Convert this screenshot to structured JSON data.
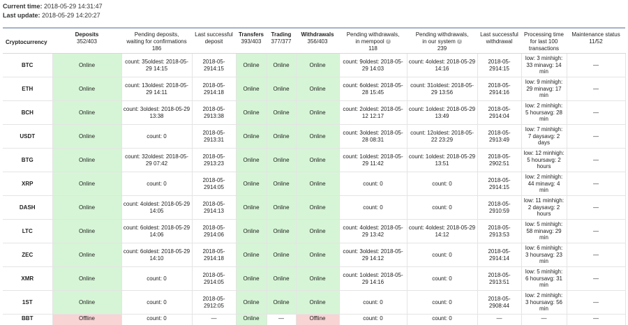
{
  "header": {
    "current_time_label": "Current time:",
    "current_time": "2018-05-29 14:31:47",
    "last_update_label": "Last update:",
    "last_update": "2018-05-29 14:20:27"
  },
  "columns": {
    "crypto": "Cryptocurrency",
    "deposits": "Deposits",
    "deposits_count": "352/403",
    "pending_dep_1": "Pending deposits,",
    "pending_dep_2": "waiting for confirmations",
    "pending_dep_count": "186",
    "last_dep_1": "Last successful",
    "last_dep_2": "deposit",
    "transfers": "Transfers",
    "transfers_count": "393/403",
    "trading": "Trading",
    "trading_count": "377/377",
    "withdrawals": "Withdrawals",
    "withdrawals_count": "356/403",
    "pw_mempool_1": "Pending withdrawals,",
    "pw_mempool_2": "in mempool",
    "pw_mempool_count": "118",
    "pw_system_1": "Pending withdrawals,",
    "pw_system_2": "in our system",
    "pw_system_count": "239",
    "last_wd_1": "Last successful",
    "last_wd_2": "withdrawal",
    "proc_1": "Processing time",
    "proc_2": "for last 100",
    "proc_3": "transactions",
    "maint_1": "Maintenance status",
    "maint_2": "11/52",
    "help_glyph": "?"
  },
  "colors": {
    "online": "#d6f5d6",
    "offline": "#f8d4d4",
    "header_rule": "#a5b2c8"
  },
  "rows": [
    {
      "name": "BTC",
      "deposits": "Online",
      "pd": [
        "count: 35",
        "oldest: 2018-05-29 14:15"
      ],
      "ld": [
        "2018-05-29",
        "14:15"
      ],
      "transfers": "Online",
      "trading": "Online",
      "withdrawals": "Online",
      "pm": [
        "count: 9",
        "oldest: 2018-05-29 14:03"
      ],
      "ps": [
        "count: 4",
        "oldest: 2018-05-29 14:16"
      ],
      "lw": [
        "2018-05-29",
        "14:15"
      ],
      "proc": [
        "low: 3 min",
        "high: 33 min",
        "avg: 14 min"
      ],
      "maint": "—"
    },
    {
      "name": "ETH",
      "deposits": "Online",
      "pd": [
        "count: 13",
        "oldest: 2018-05-29 14:11"
      ],
      "ld": [
        "2018-05-29",
        "14:18"
      ],
      "transfers": "Online",
      "trading": "Online",
      "withdrawals": "Online",
      "pm": [
        "count: 6",
        "oldest: 2018-05-28 15:45"
      ],
      "ps": [
        "count: 31",
        "oldest: 2018-05-29 13:56"
      ],
      "lw": [
        "2018-05-29",
        "14:16"
      ],
      "proc": [
        "low: 9 min",
        "high: 29 min",
        "avg: 17 min"
      ],
      "maint": "—"
    },
    {
      "name": "BCH",
      "deposits": "Online",
      "pd": [
        "count: 3",
        "oldest: 2018-05-29 13:38"
      ],
      "ld": [
        "2018-05-29",
        "13:38"
      ],
      "transfers": "Online",
      "trading": "Online",
      "withdrawals": "Online",
      "pm": [
        "count: 2",
        "oldest: 2018-05-12 12:17"
      ],
      "ps": [
        "count: 1",
        "oldest: 2018-05-29 13:49"
      ],
      "lw": [
        "2018-05-29",
        "14:04"
      ],
      "proc": [
        "low: 2 min",
        "high: 5 hours",
        "avg: 28 min"
      ],
      "maint": "—"
    },
    {
      "name": "USDT",
      "deposits": "Online",
      "pd": [
        "count: 0"
      ],
      "ld": [
        "2018-05-29",
        "13:31"
      ],
      "transfers": "Online",
      "trading": "Online",
      "withdrawals": "Online",
      "pm": [
        "count: 3",
        "oldest: 2018-05-28 08:31"
      ],
      "ps": [
        "count: 12",
        "oldest: 2018-05-22 23:29"
      ],
      "lw": [
        "2018-05-29",
        "13:49"
      ],
      "proc": [
        "low: 7 min",
        "high: 7 days",
        "avg: 2 days"
      ],
      "maint": "—"
    },
    {
      "name": "BTG",
      "deposits": "Online",
      "pd": [
        "count: 32",
        "oldest: 2018-05-29 07:42"
      ],
      "ld": [
        "2018-05-29",
        "13:23"
      ],
      "transfers": "Online",
      "trading": "Online",
      "withdrawals": "Online",
      "pm": [
        "count: 1",
        "oldest: 2018-05-29 11:42"
      ],
      "ps": [
        "count: 1",
        "oldest: 2018-05-29 13:51"
      ],
      "lw": [
        "2018-05-29",
        "02:51"
      ],
      "proc": [
        "low: 12 min",
        "high: 5 hours",
        "avg: 2 hours"
      ],
      "maint": "—"
    },
    {
      "name": "XRP",
      "deposits": "Online",
      "pd": [
        "count: 0"
      ],
      "ld": [
        "2018-05-29",
        "14:05"
      ],
      "transfers": "Online",
      "trading": "Online",
      "withdrawals": "Online",
      "pm": [
        "count: 0"
      ],
      "ps": [
        "count: 0"
      ],
      "lw": [
        "2018-05-29",
        "14:15"
      ],
      "proc": [
        "low: 2 min",
        "high: 44 min",
        "avg: 4 min"
      ],
      "maint": "—"
    },
    {
      "name": "DASH",
      "deposits": "Online",
      "pd": [
        "count: 4",
        "oldest: 2018-05-29 14:05"
      ],
      "ld": [
        "2018-05-29",
        "14:13"
      ],
      "transfers": "Online",
      "trading": "Online",
      "withdrawals": "Online",
      "pm": [
        "count: 0"
      ],
      "ps": [
        "count: 0"
      ],
      "lw": [
        "2018-05-29",
        "10:59"
      ],
      "proc": [
        "low: 11 min",
        "high: 2 days",
        "avg: 2 hours"
      ],
      "maint": "—"
    },
    {
      "name": "LTC",
      "deposits": "Online",
      "pd": [
        "count: 6",
        "oldest: 2018-05-29 14:06"
      ],
      "ld": [
        "2018-05-29",
        "14:06"
      ],
      "transfers": "Online",
      "trading": "Online",
      "withdrawals": "Online",
      "pm": [
        "count: 4",
        "oldest: 2018-05-29 13:42"
      ],
      "ps": [
        "count: 4",
        "oldest: 2018-05-29 14:12"
      ],
      "lw": [
        "2018-05-29",
        "13:53"
      ],
      "proc": [
        "low: 5 min",
        "high: 58 min",
        "avg: 29 min"
      ],
      "maint": "—"
    },
    {
      "name": "ZEC",
      "deposits": "Online",
      "pd": [
        "count: 6",
        "oldest: 2018-05-29 14:10"
      ],
      "ld": [
        "2018-05-29",
        "14:18"
      ],
      "transfers": "Online",
      "trading": "Online",
      "withdrawals": "Online",
      "pm": [
        "count: 3",
        "oldest: 2018-05-29 14:12"
      ],
      "ps": [
        "count: 0"
      ],
      "lw": [
        "2018-05-29",
        "14:14"
      ],
      "proc": [
        "low: 6 min",
        "high: 3 hours",
        "avg: 23 min"
      ],
      "maint": "—"
    },
    {
      "name": "XMR",
      "deposits": "Online",
      "pd": [
        "count: 0"
      ],
      "ld": [
        "2018-05-29",
        "14:05"
      ],
      "transfers": "Online",
      "trading": "Online",
      "withdrawals": "Online",
      "pm": [
        "count: 1",
        "oldest: 2018-05-29 14:16"
      ],
      "ps": [
        "count: 0"
      ],
      "lw": [
        "2018-05-29",
        "13:51"
      ],
      "proc": [
        "low: 5 min",
        "high: 6 hours",
        "avg: 31 min"
      ],
      "maint": "—"
    },
    {
      "name": "1ST",
      "deposits": "Online",
      "pd": [
        "count: 0"
      ],
      "ld": [
        "2018-05-29",
        "12:05"
      ],
      "transfers": "Online",
      "trading": "Online",
      "withdrawals": "Online",
      "pm": [
        "count: 0"
      ],
      "ps": [
        "count: 0"
      ],
      "lw": [
        "2018-05-29",
        "08:44"
      ],
      "proc": [
        "low: 2 min",
        "high: 3 hours",
        "avg: 56 min"
      ],
      "maint": "—"
    }
  ],
  "partial_row": {
    "name": "BBT",
    "deposits": "Offline",
    "pd": "count: 0",
    "ld": "—",
    "transfers": "Online",
    "trading": "—",
    "withdrawals": "Offline",
    "pm": "count: 0",
    "ps": "count: 0",
    "lw": "—",
    "proc": "—",
    "maint": "—"
  }
}
